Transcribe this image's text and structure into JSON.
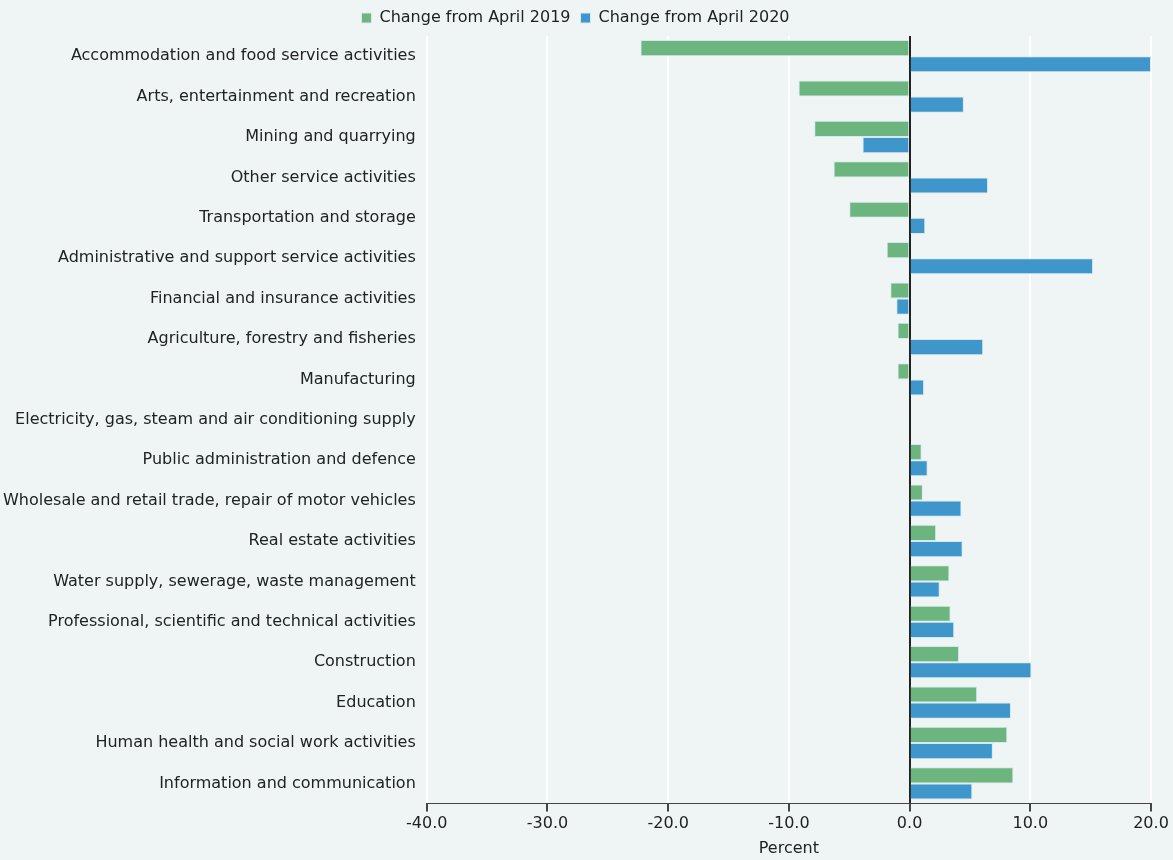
{
  "chart_data": {
    "type": "bar",
    "orientation": "horizontal",
    "xlabel": "Percent",
    "categories": [
      "Accommodation and food service activities",
      "Arts, entertainment and recreation",
      "Mining and quarrying",
      "Other service activities",
      "Transportation and storage",
      "Administrative and support service activities",
      "Financial and insurance activities",
      "Agriculture, forestry and fisheries",
      "Manufacturing",
      "Electricity, gas, steam and air conditioning supply",
      "Public administration and defence",
      "Wholesale and retail trade, repair of motor vehicles",
      "Real estate activities",
      "Water supply, sewerage, waste management",
      "Professional, scientific and technical activities",
      "Construction",
      "Education",
      "Human health and social work activities",
      "Information and communication"
    ],
    "series": [
      {
        "name": "Change from April 2019",
        "color": "#6db57e",
        "values": [
          -22.3,
          -9.2,
          -7.9,
          -6.3,
          -5.0,
          -1.9,
          -1.6,
          -1.0,
          -1.0,
          0,
          1.0,
          1.1,
          2.2,
          3.3,
          3.4,
          4.1,
          5.6,
          8.1,
          8.6
        ]
      },
      {
        "name": "Change from April 2020",
        "color": "#3e96cb",
        "values": [
          20.0,
          4.5,
          -3.9,
          6.5,
          1.3,
          15.2,
          -1.1,
          6.1,
          1.2,
          null,
          1.5,
          4.3,
          4.4,
          2.5,
          3.7,
          10.1,
          8.4,
          6.9,
          5.2
        ]
      }
    ],
    "xlim": [
      -40,
      20
    ],
    "xticks": [
      {
        "value": -40,
        "label": "-40.0"
      },
      {
        "value": -30,
        "label": "-30.0"
      },
      {
        "value": -20,
        "label": "-20.0"
      },
      {
        "value": -10,
        "label": "-10.0"
      },
      {
        "value": 0,
        "label": "0.0"
      },
      {
        "value": 10,
        "label": "10.0"
      },
      {
        "value": 20,
        "label": "20.0"
      }
    ],
    "grid": "x",
    "legend": "top"
  }
}
